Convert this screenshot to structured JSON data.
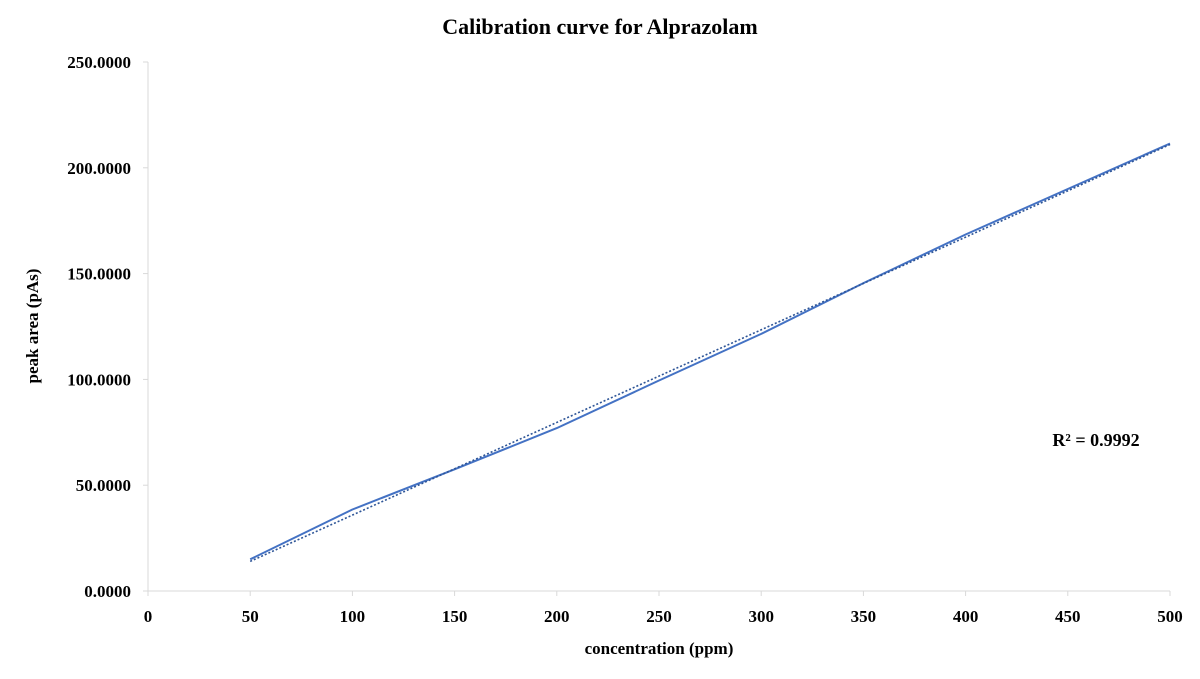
{
  "chart_data": {
    "type": "line",
    "title": "Calibration curve for Alprazolam",
    "xlabel": "concentration (ppm)",
    "ylabel": "peak area (pAs)",
    "xlim": [
      0,
      500
    ],
    "ylim": [
      0,
      250
    ],
    "x_ticks": [
      "0",
      "50",
      "100",
      "150",
      "200",
      "250",
      "300",
      "350",
      "400",
      "450",
      "500"
    ],
    "y_ticks": [
      "0.0000",
      "50.0000",
      "100.0000",
      "150.0000",
      "200.0000",
      "250.0000"
    ],
    "grid": false,
    "legend": "none",
    "series": [
      {
        "style": "solid",
        "color": "#4472C4",
        "x": [
          50,
          100,
          150,
          200,
          250,
          300,
          350,
          400,
          450,
          500
        ],
        "y": [
          15.0,
          38.5,
          57.5,
          77.0,
          99.5,
          121.5,
          145.5,
          168.5,
          190.0,
          211.5
        ]
      },
      {
        "style": "dotted",
        "trendline": "linear",
        "color": "#2E5597",
        "x": [
          50,
          500
        ],
        "y": [
          14.0,
          211.0
        ]
      }
    ],
    "annotations": [
      {
        "text": "R² = 0.9992"
      }
    ]
  }
}
